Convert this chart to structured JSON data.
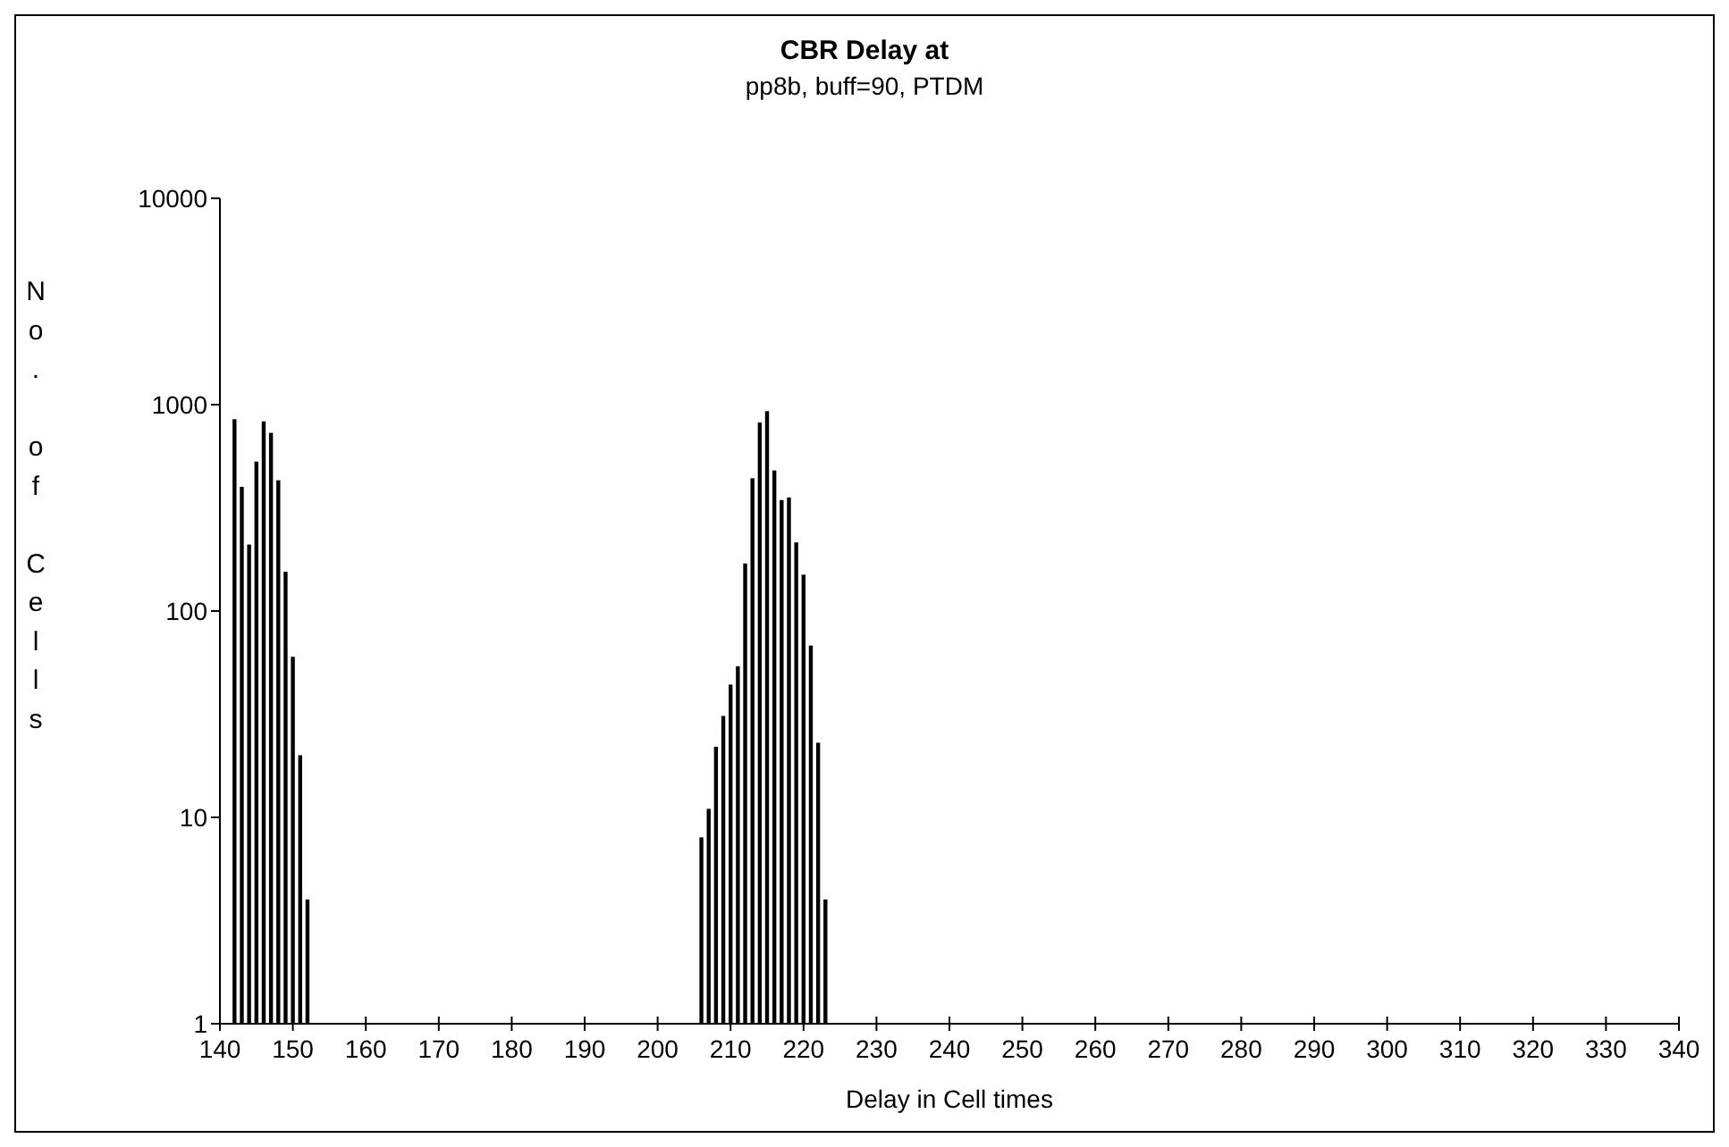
{
  "chart_data": {
    "type": "bar",
    "title": "CBR Delay at",
    "subtitle": "pp8b, buff=90, PTDM",
    "xlabel": "Delay in Cell times",
    "ylabel": "No. of Cells",
    "x": [
      142,
      143,
      144,
      145,
      146,
      147,
      148,
      149,
      150,
      151,
      152,
      206,
      207,
      208,
      209,
      210,
      211,
      212,
      213,
      214,
      215,
      216,
      217,
      218,
      219,
      220,
      221,
      222,
      223
    ],
    "values": [
      850,
      400,
      210,
      530,
      830,
      730,
      430,
      155,
      60,
      20,
      4,
      8,
      11,
      22,
      31,
      44,
      54,
      170,
      440,
      820,
      930,
      480,
      345,
      355,
      215,
      150,
      68,
      23,
      4
    ],
    "color": "#000000",
    "log": true,
    "ylim": [
      1,
      10000
    ],
    "yticks": [
      1,
      10,
      100,
      1000,
      10000
    ],
    "xlim": [
      140,
      340
    ],
    "xticks": [
      140,
      150,
      160,
      170,
      180,
      190,
      200,
      210,
      220,
      230,
      240,
      250,
      260,
      270,
      280,
      290,
      300,
      310,
      320,
      330,
      340
    ],
    "grid": false
  }
}
